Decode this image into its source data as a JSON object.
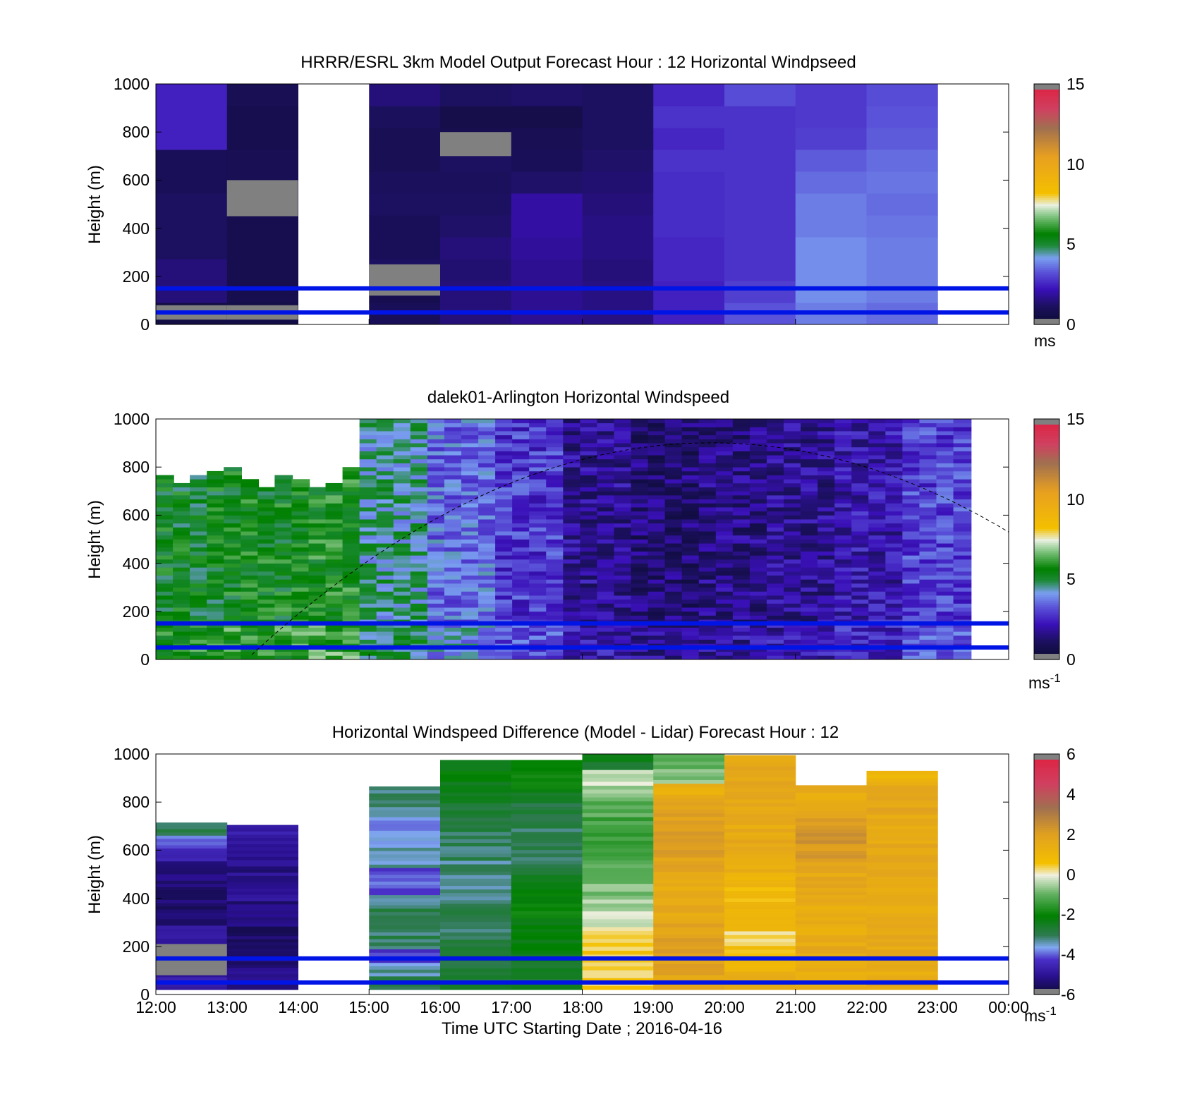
{
  "figure": {
    "xlabel": "Time UTC  Starting Date ; 2016-04-16",
    "time_ticks": [
      "12:00",
      "13:00",
      "14:00",
      "15:00",
      "16:00",
      "17:00",
      "18:00",
      "19:00",
      "20:00",
      "21:00",
      "22:00",
      "23:00",
      "00:00"
    ]
  },
  "chart_data": [
    {
      "type": "heatmap",
      "title": "HRRR/ESRL 3km Model Output   Forecast Hour : 12 Horizontal Windpseed",
      "ylabel": "Height (m)",
      "ylim": [
        0,
        1000
      ],
      "yticks": [
        "0",
        "200",
        "400",
        "600",
        "800",
        "1000"
      ],
      "xlim_hours": [
        12,
        24
      ],
      "colorbar": {
        "ticks": [
          "0",
          "5",
          "10",
          "15"
        ],
        "unit": "ms",
        "range": [
          0,
          15
        ]
      },
      "reference_heights_m": [
        150,
        50
      ],
      "time_columns_hours": [
        12,
        13,
        15,
        16,
        17,
        18,
        19,
        20,
        21,
        22
      ],
      "windspeed_columns": [
        [
          0.5,
          1.5,
          1.5,
          1.2,
          1.2,
          1.2,
          1.0,
          1.0,
          2.5,
          2.5,
          2.5
        ],
        [
          0.6,
          0.8,
          0.8,
          0.8,
          0.8,
          0.9,
          0.9,
          0.9,
          0.8,
          0.8,
          0.9
        ],
        [
          1.0,
          0.8,
          1.2,
          1.0,
          1.0,
          1.2,
          1.1,
          0.9,
          0.9,
          1.1,
          1.5
        ],
        [
          1.5,
          1.5,
          1.4,
          1.5,
          1.3,
          1.2,
          1.1,
          1.2,
          0.8,
          0.7,
          1.2
        ],
        [
          1.8,
          1.8,
          1.8,
          1.9,
          2.0,
          2.0,
          1.3,
          1.0,
          0.9,
          0.7,
          1.3
        ],
        [
          1.6,
          1.6,
          1.5,
          1.6,
          1.6,
          1.5,
          1.4,
          1.3,
          1.2,
          1.2,
          1.2
        ],
        [
          2.5,
          2.5,
          2.6,
          2.6,
          2.7,
          2.7,
          2.7,
          2.8,
          2.6,
          2.8,
          2.6
        ],
        [
          3.3,
          3.0,
          2.8,
          2.8,
          2.8,
          2.8,
          2.8,
          2.8,
          2.8,
          2.8,
          3.2
        ],
        [
          3.8,
          4.0,
          4.0,
          4.0,
          3.8,
          3.8,
          3.6,
          3.4,
          3.0,
          2.9,
          2.9
        ],
        [
          3.6,
          3.8,
          3.8,
          3.8,
          3.7,
          3.6,
          3.7,
          3.6,
          3.4,
          3.3,
          3.2
        ]
      ]
    },
    {
      "type": "heatmap",
      "title": "dalek01-Arlington  Horizontal Windspeed",
      "ylabel": "Height (m)",
      "ylim": [
        0,
        1000
      ],
      "yticks": [
        "0",
        "200",
        "400",
        "600",
        "800",
        "1000"
      ],
      "xlim_hours": [
        12,
        24
      ],
      "colorbar": {
        "ticks": [
          "0",
          "5",
          "10",
          "15"
        ],
        "unit": "ms",
        "unit_exp": "-1",
        "range": [
          0,
          15
        ]
      },
      "reference_heights_m": [
        150,
        50
      ],
      "daytime_curve": {
        "hours": [
          13.35,
          20.0,
          24.0
        ],
        "heights_m": [
          20,
          900,
          530
        ]
      },
      "profile_hours": [
        12.0,
        13.0,
        14.0,
        15.0,
        16.0,
        17.0,
        18.0,
        19.0,
        20.0,
        21.0,
        22.0,
        23.0
      ],
      "mean_windspeed_profile": [
        5.4,
        5.6,
        5.8,
        4.6,
        3.6,
        2.9,
        1.8,
        1.4,
        1.6,
        1.8,
        2.2,
        3.0
      ]
    },
    {
      "type": "heatmap",
      "title": "Horizontal Windspeed Difference (Model - Lidar) Forecast Hour : 12",
      "ylabel": "Height (m)",
      "ylim": [
        0,
        1000
      ],
      "yticks": [
        "0",
        "200",
        "400",
        "600",
        "800",
        "1000"
      ],
      "xlim_hours": [
        12,
        24
      ],
      "colorbar": {
        "ticks": [
          "-6",
          "-4",
          "-2",
          "0",
          "2",
          "4",
          "6"
        ],
        "unit": "ms",
        "unit_exp": "-1",
        "range": [
          -6,
          6
        ]
      },
      "reference_heights_m": [
        150,
        50
      ],
      "columns": [
        {
          "hour": 12,
          "top_m": 715,
          "diff": [
            -4.6,
            -4.8,
            -4.5,
            -4.7,
            -4.9,
            -5.2,
            -5.4,
            -5.5,
            -5.3,
            -5.2,
            -4.5,
            -4.0,
            -3.0
          ]
        },
        {
          "hour": 13,
          "top_m": 705,
          "diff": [
            -5.0,
            -5.1,
            -5.3,
            -5.4,
            -5.4,
            -5.3,
            -5.2,
            -5.0,
            -5.0,
            -5.1,
            -4.9,
            -4.8,
            -4.7
          ]
        },
        {
          "hour": 15,
          "top_m": 865,
          "diff": [
            -3.0,
            -3.4,
            -4.2,
            -3.0,
            -3.0,
            -3.0,
            -3.1,
            -4.0,
            -4.2,
            -3.3,
            -3.4,
            -3.6,
            -3.6,
            -3.2,
            -3.2
          ]
        },
        {
          "hour": 16,
          "top_m": 975,
          "diff": [
            -2.7,
            -2.8,
            -2.9,
            -3.0,
            -3.0,
            -3.0,
            -3.2,
            -3.3,
            -3.2,
            -3.0,
            -3.0,
            -2.8,
            -2.6,
            -2.4,
            -2.2,
            -2.1
          ]
        },
        {
          "hour": 17,
          "top_m": 975,
          "diff": [
            -2.6,
            -2.4,
            -2.3,
            -2.2,
            -2.1,
            -2.0,
            -2.2,
            -2.4,
            -2.8,
            -3.0,
            -3.1,
            -3.0,
            -2.8,
            -2.4,
            -2.0,
            -1.8
          ]
        },
        {
          "hour": 18,
          "top_m": 1000,
          "diff": [
            0.5,
            0.4,
            0.5,
            0.3,
            -0.2,
            -0.5,
            -0.8,
            -1.0,
            -1.2,
            -1.4,
            -1.3,
            -1.0,
            -0.6,
            -0.3,
            -2.5
          ]
        },
        {
          "hour": 19,
          "top_m": 1000,
          "diff": [
            1.8,
            2.0,
            2.1,
            1.9,
            1.8,
            1.7,
            1.6,
            1.7,
            1.9,
            2.0,
            2.1,
            2.0,
            1.8,
            1.4,
            -0.8,
            -1.0
          ]
        },
        {
          "hour": 20,
          "top_m": 995,
          "diff": [
            1.6,
            1.2,
            0.6,
            0.4,
            0.8,
            1.0,
            0.8,
            1.2,
            1.4,
            1.6,
            1.7,
            1.6,
            1.5,
            1.6,
            1.7,
            1.7
          ]
        },
        {
          "hour": 21,
          "top_m": 870,
          "diff": [
            1.4,
            1.5,
            1.6,
            1.5,
            1.4,
            1.5,
            1.6,
            1.7,
            1.9,
            2.2,
            2.3,
            2.0,
            1.8,
            1.6
          ]
        },
        {
          "hour": 22,
          "top_m": 930,
          "diff": [
            1.6,
            1.5,
            1.6,
            1.7,
            1.6,
            1.5,
            1.6,
            1.7,
            1.8,
            1.7,
            1.6,
            1.7,
            1.8,
            1.7,
            1.2
          ]
        }
      ]
    }
  ]
}
